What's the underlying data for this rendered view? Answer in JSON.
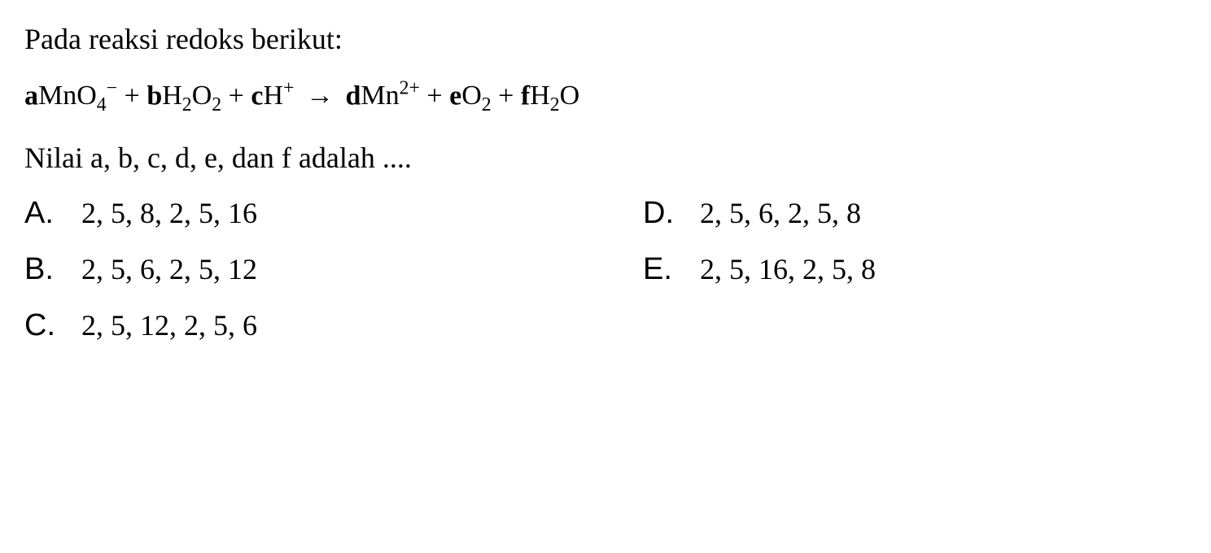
{
  "question": {
    "prompt_line1": "Pada reaksi redoks berikut:",
    "prompt_line2": "Nilai a, b, c, d, e, dan f adalah ....",
    "equation": {
      "terms": [
        {
          "coef": "a",
          "species": "MnO",
          "sub": "4",
          "sup": "−"
        },
        {
          "coef": "b",
          "species": "H",
          "sub": "2",
          "species2": "O",
          "sub2": "2"
        },
        {
          "coef": "c",
          "species": "H",
          "sup": "+"
        }
      ],
      "arrow": "→",
      "products": [
        {
          "coef": "d",
          "species": "Mn",
          "sup": "2+"
        },
        {
          "coef": "e",
          "species": "O",
          "sub": "2"
        },
        {
          "coef": "f",
          "species": "H",
          "sub": "2",
          "species2": "O"
        }
      ]
    }
  },
  "options": {
    "A": {
      "letter": "A.",
      "value": "2, 5, 8, 2, 5, 16"
    },
    "B": {
      "letter": "B.",
      "value": "2, 5, 6, 2, 5, 12"
    },
    "C": {
      "letter": "C.",
      "value": "2, 5, 12, 2, 5, 6"
    },
    "D": {
      "letter": "D.",
      "value": "2, 5, 6, 2, 5, 8"
    },
    "E": {
      "letter": "E.",
      "value": "2, 5, 16, 2, 5, 8"
    }
  },
  "style": {
    "background_color": "#ffffff",
    "text_color": "#000000",
    "body_fontsize": 36,
    "equation_fontsize": 34,
    "option_letter_fontsize": 38,
    "option_letter_font": "Arial",
    "body_font": "Georgia"
  }
}
